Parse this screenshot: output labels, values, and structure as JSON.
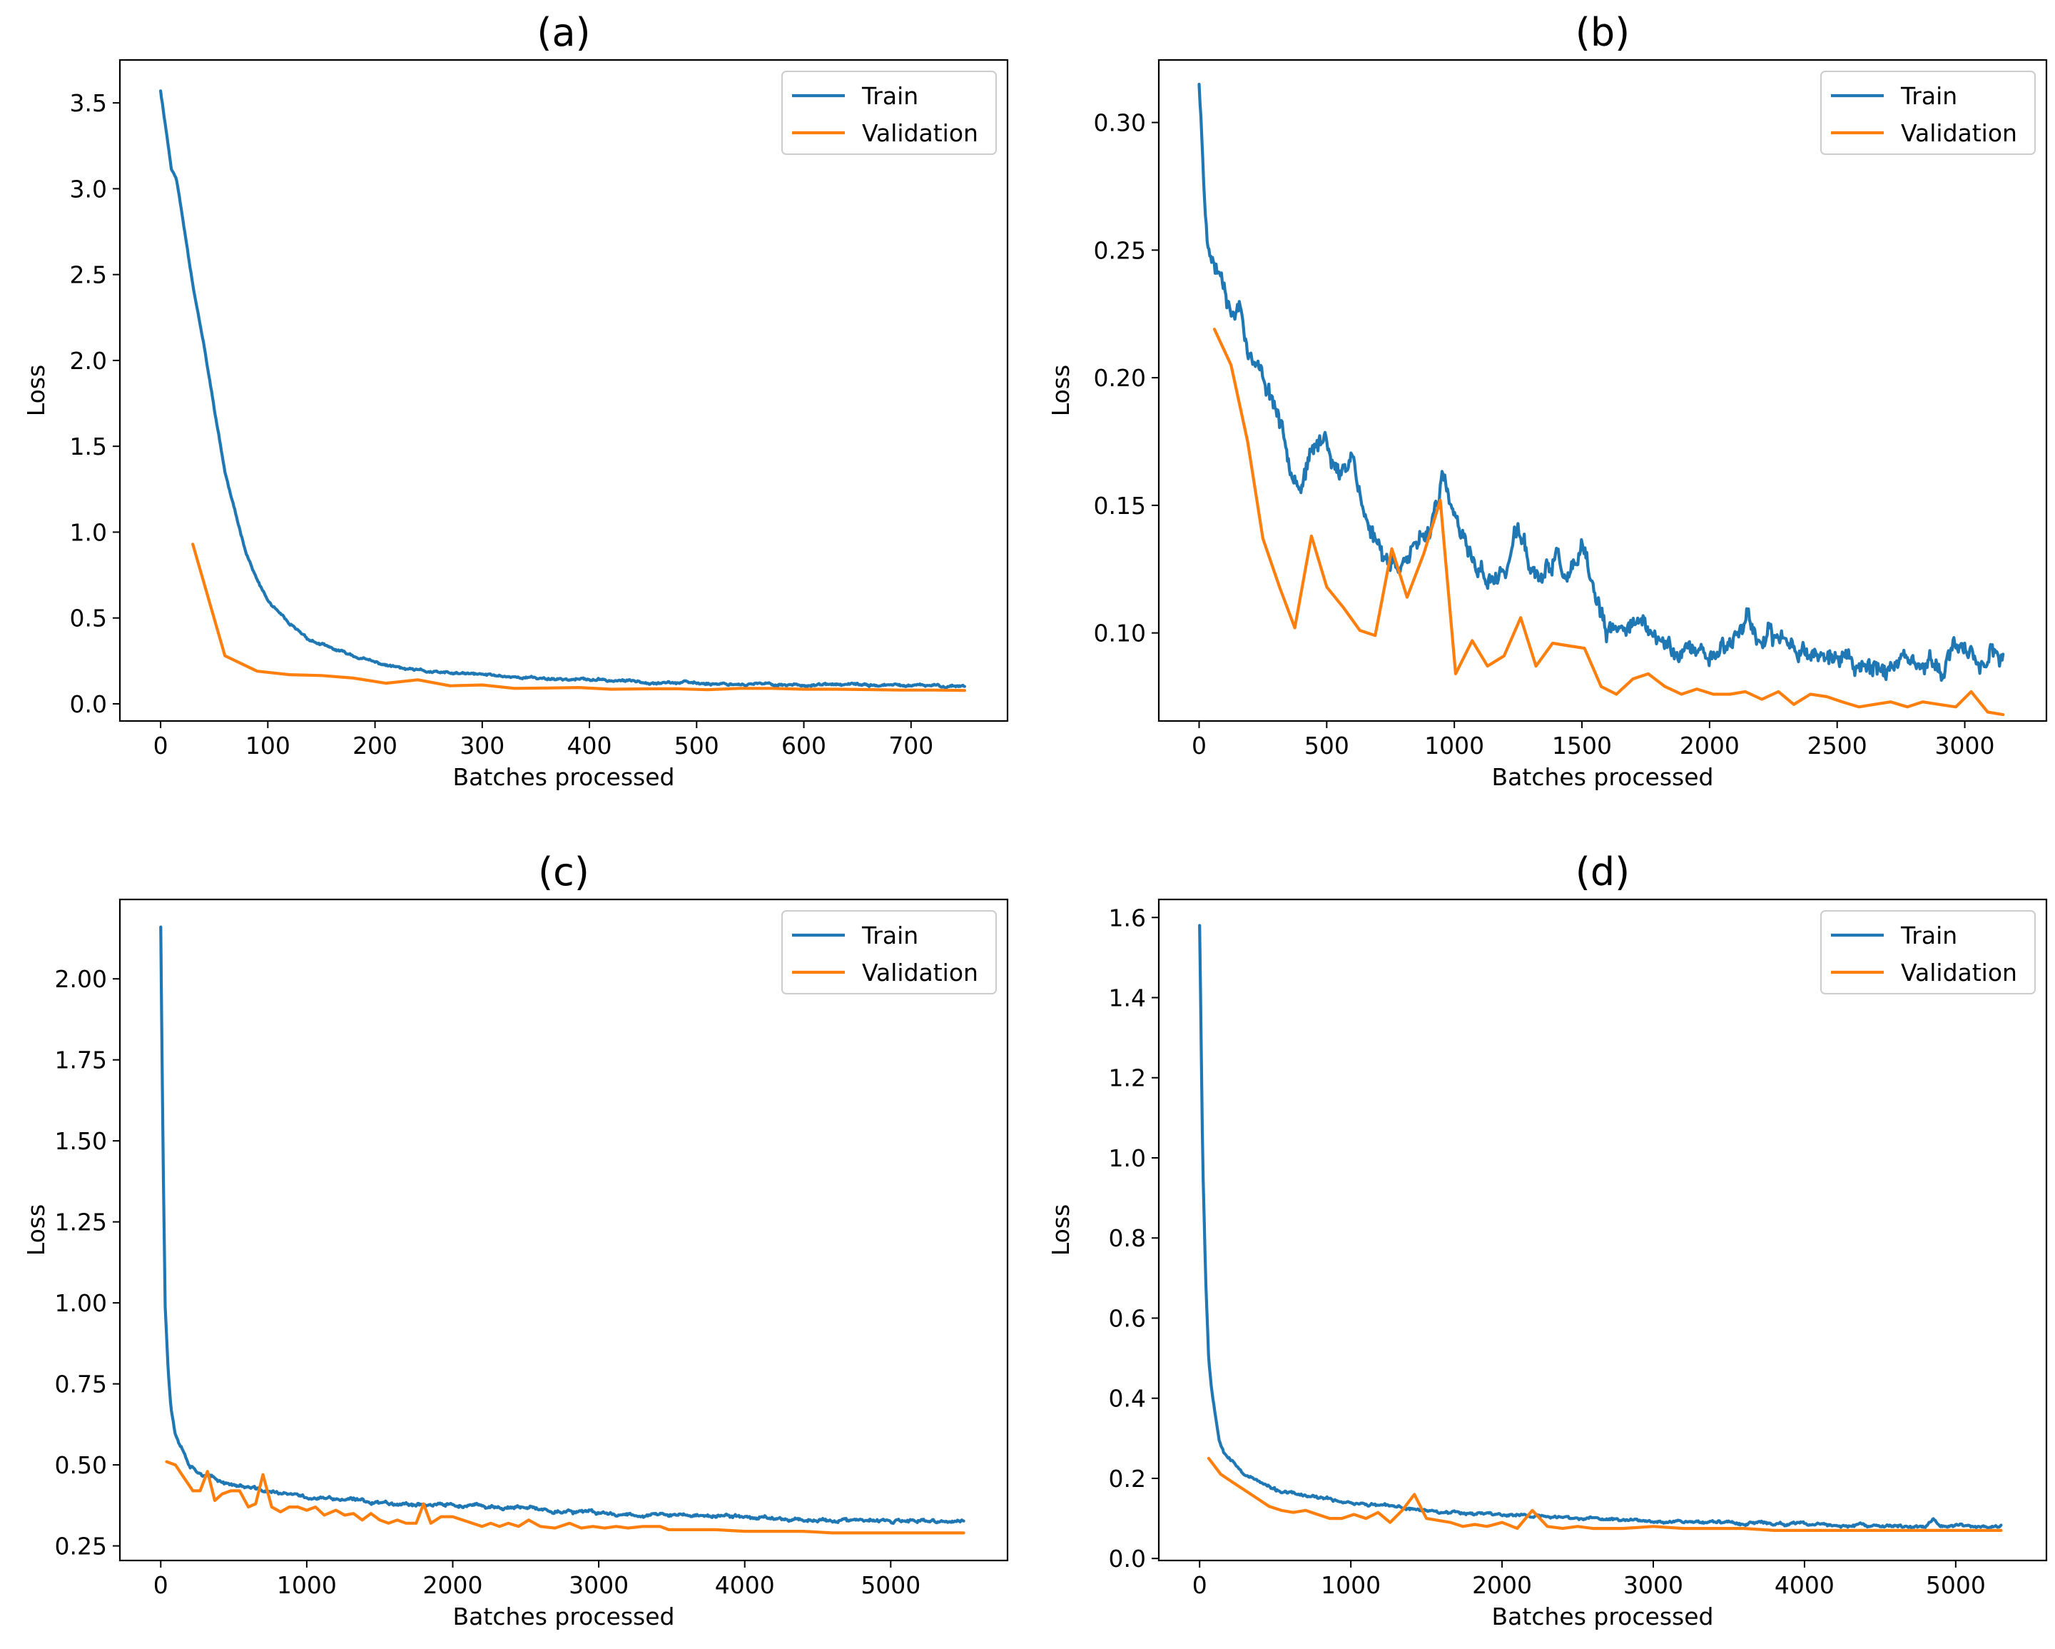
{
  "colors": {
    "train": "#1f77b4",
    "validation": "#ff7f0e"
  },
  "legend": {
    "train_label": "Train",
    "validation_label": "Validation",
    "placement": "top-right"
  },
  "chart_data": [
    {
      "id": "a",
      "type": "line",
      "title": "(a)",
      "xlabel": "Batches processed",
      "ylabel": "Loss",
      "xlim": [
        -38,
        790
      ],
      "ylim": [
        -0.1,
        3.75
      ],
      "xticks": [
        0,
        100,
        200,
        300,
        400,
        500,
        600,
        700
      ],
      "yticks": [
        0.0,
        0.5,
        1.0,
        1.5,
        2.0,
        2.5,
        3.0,
        3.5
      ],
      "ytick_decimals": 1,
      "series": [
        {
          "name": "Train",
          "noise": 0.008,
          "seed": 11,
          "x": [
            0,
            5,
            10,
            15,
            20,
            30,
            40,
            50,
            60,
            70,
            80,
            90,
            100,
            120,
            140,
            160,
            180,
            200,
            230,
            260,
            300,
            350,
            400,
            450,
            500,
            550,
            600,
            650,
            700,
            750
          ],
          "y": [
            3.57,
            3.35,
            3.12,
            3.05,
            2.85,
            2.45,
            2.1,
            1.72,
            1.35,
            1.1,
            0.88,
            0.72,
            0.6,
            0.46,
            0.37,
            0.32,
            0.28,
            0.24,
            0.2,
            0.18,
            0.17,
            0.15,
            0.14,
            0.13,
            0.12,
            0.115,
            0.11,
            0.11,
            0.105,
            0.105
          ]
        },
        {
          "name": "Validation",
          "noise": 0,
          "seed": 0,
          "x": [
            30,
            60,
            90,
            120,
            150,
            180,
            210,
            240,
            270,
            300,
            330,
            360,
            390,
            420,
            450,
            480,
            510,
            540,
            570,
            600,
            630,
            660,
            690,
            720,
            750
          ],
          "y": [
            0.93,
            0.28,
            0.19,
            0.17,
            0.165,
            0.15,
            0.12,
            0.14,
            0.105,
            0.11,
            0.09,
            0.092,
            0.095,
            0.085,
            0.087,
            0.088,
            0.082,
            0.09,
            0.09,
            0.085,
            0.085,
            0.083,
            0.08,
            0.08,
            0.078
          ]
        }
      ]
    },
    {
      "id": "b",
      "type": "line",
      "title": "(b)",
      "xlabel": "Batches processed",
      "ylabel": "Loss",
      "xlim": [
        -158,
        3320
      ],
      "ylim": [
        0.0655,
        0.3245
      ],
      "xticks": [
        0,
        500,
        1000,
        1500,
        2000,
        2500,
        3000
      ],
      "yticks": [
        0.1,
        0.15,
        0.2,
        0.25,
        0.3
      ],
      "ytick_decimals": 2,
      "series": [
        {
          "name": "Train",
          "noise": 0.0045,
          "seed": 23,
          "x": [
            0,
            20,
            40,
            60,
            100,
            130,
            160,
            200,
            250,
            300,
            350,
            400,
            450,
            500,
            550,
            600,
            650,
            700,
            750,
            800,
            850,
            900,
            950,
            1000,
            1050,
            1100,
            1150,
            1200,
            1250,
            1300,
            1350,
            1400,
            1450,
            1500,
            1550,
            1600,
            1650,
            1700,
            1750,
            1800,
            1900,
            2000,
            2100,
            2150,
            2200,
            2300,
            2400,
            2500,
            2600,
            2700,
            2800,
            2900,
            2950,
            3000,
            3050,
            3100,
            3150
          ],
          "y": [
            0.315,
            0.275,
            0.25,
            0.245,
            0.24,
            0.225,
            0.23,
            0.21,
            0.2,
            0.19,
            0.17,
            0.16,
            0.17,
            0.178,
            0.16,
            0.172,
            0.145,
            0.135,
            0.128,
            0.13,
            0.13,
            0.14,
            0.16,
            0.145,
            0.13,
            0.125,
            0.12,
            0.125,
            0.14,
            0.125,
            0.12,
            0.13,
            0.12,
            0.13,
            0.115,
            0.098,
            0.1,
            0.108,
            0.1,
            0.097,
            0.093,
            0.092,
            0.098,
            0.108,
            0.095,
            0.098,
            0.093,
            0.09,
            0.088,
            0.087,
            0.085,
            0.088,
            0.09,
            0.097,
            0.087,
            0.094,
            0.085
          ]
        },
        {
          "name": "Validation",
          "noise": 0,
          "seed": 0,
          "x": [
            60,
            125,
            190,
            250,
            315,
            375,
            440,
            500,
            565,
            630,
            690,
            755,
            815,
            880,
            945,
            1005,
            1070,
            1130,
            1195,
            1260,
            1320,
            1385,
            1445,
            1510,
            1575,
            1635,
            1700,
            1760,
            1825,
            1890,
            1950,
            2015,
            2080,
            2140,
            2205,
            2270,
            2330,
            2395,
            2460,
            2520,
            2585,
            2645,
            2710,
            2775,
            2835,
            2900,
            2965,
            3025,
            3090,
            3150
          ],
          "y": [
            0.219,
            0.205,
            0.175,
            0.137,
            0.118,
            0.102,
            0.138,
            0.118,
            0.11,
            0.101,
            0.099,
            0.133,
            0.114,
            0.131,
            0.152,
            0.084,
            0.097,
            0.087,
            0.091,
            0.106,
            0.087,
            0.096,
            0.095,
            0.094,
            0.079,
            0.076,
            0.082,
            0.084,
            0.079,
            0.076,
            0.078,
            0.076,
            0.076,
            0.077,
            0.074,
            0.077,
            0.072,
            0.076,
            0.075,
            0.073,
            0.071,
            0.072,
            0.073,
            0.071,
            0.073,
            0.072,
            0.071,
            0.077,
            0.069,
            0.068
          ]
        }
      ]
    },
    {
      "id": "c",
      "type": "line",
      "title": "(c)",
      "xlabel": "Batches processed",
      "ylabel": "Loss",
      "xlim": [
        -280,
        5800
      ],
      "ylim": [
        0.205,
        2.245
      ],
      "xticks": [
        0,
        1000,
        2000,
        3000,
        4000,
        5000
      ],
      "yticks": [
        0.25,
        0.5,
        0.75,
        1.0,
        1.25,
        1.5,
        1.75,
        2.0
      ],
      "ytick_decimals": 2,
      "series": [
        {
          "name": "Train",
          "noise": 0.006,
          "seed": 37,
          "x": [
            0,
            15,
            30,
            50,
            70,
            100,
            150,
            200,
            300,
            400,
            500,
            700,
            1000,
            1500,
            2000,
            2500,
            3000,
            3500,
            4000,
            4500,
            5000,
            5500
          ],
          "y": [
            2.16,
            1.5,
            1.0,
            0.8,
            0.68,
            0.6,
            0.55,
            0.5,
            0.47,
            0.45,
            0.44,
            0.42,
            0.4,
            0.385,
            0.375,
            0.365,
            0.35,
            0.345,
            0.34,
            0.33,
            0.325,
            0.325
          ]
        },
        {
          "name": "Validation",
          "noise": 0,
          "seed": 0,
          "x": [
            40,
            100,
            160,
            220,
            270,
            320,
            370,
            420,
            480,
            540,
            600,
            650,
            700,
            760,
            820,
            880,
            940,
            1000,
            1060,
            1120,
            1200,
            1260,
            1320,
            1380,
            1440,
            1500,
            1560,
            1620,
            1680,
            1750,
            1800,
            1850,
            1920,
            2000,
            2100,
            2200,
            2260,
            2320,
            2380,
            2450,
            2520,
            2600,
            2700,
            2800,
            2880,
            2960,
            3040,
            3120,
            3200,
            3300,
            3420,
            3480,
            3600,
            3800,
            4000,
            4200,
            4400,
            4600,
            4800,
            5000,
            5200,
            5500
          ],
          "y": [
            0.51,
            0.5,
            0.46,
            0.42,
            0.42,
            0.48,
            0.39,
            0.41,
            0.42,
            0.42,
            0.37,
            0.38,
            0.47,
            0.37,
            0.355,
            0.37,
            0.37,
            0.36,
            0.37,
            0.345,
            0.36,
            0.345,
            0.35,
            0.33,
            0.35,
            0.33,
            0.32,
            0.33,
            0.32,
            0.32,
            0.38,
            0.32,
            0.34,
            0.34,
            0.325,
            0.31,
            0.32,
            0.31,
            0.32,
            0.31,
            0.33,
            0.31,
            0.305,
            0.32,
            0.305,
            0.31,
            0.305,
            0.31,
            0.305,
            0.31,
            0.31,
            0.3,
            0.3,
            0.3,
            0.295,
            0.295,
            0.295,
            0.29,
            0.29,
            0.29,
            0.29,
            0.29
          ]
        }
      ]
    },
    {
      "id": "d",
      "type": "line",
      "title": "(d)",
      "xlabel": "Batches processed",
      "ylabel": "Loss",
      "xlim": [
        -270,
        5600
      ],
      "ylim": [
        -0.005,
        1.645
      ],
      "xticks": [
        0,
        1000,
        2000,
        3000,
        4000,
        5000
      ],
      "yticks": [
        0.0,
        0.2,
        0.4,
        0.6,
        0.8,
        1.0,
        1.2,
        1.4,
        1.6
      ],
      "ytick_decimals": 1,
      "series": [
        {
          "name": "Train",
          "noise": 0.004,
          "seed": 53,
          "x": [
            0,
            10,
            20,
            40,
            60,
            80,
            100,
            130,
            160,
            200,
            250,
            300,
            400,
            500,
            700,
            1000,
            1500,
            2000,
            2500,
            3000,
            3500,
            4000,
            4500,
            4800,
            4850,
            4900,
            5000,
            5300
          ],
          "y": [
            1.58,
            1.3,
            1.0,
            0.7,
            0.5,
            0.42,
            0.37,
            0.3,
            0.27,
            0.25,
            0.23,
            0.21,
            0.19,
            0.17,
            0.155,
            0.14,
            0.12,
            0.11,
            0.1,
            0.095,
            0.09,
            0.085,
            0.08,
            0.08,
            0.1,
            0.08,
            0.08,
            0.08
          ]
        },
        {
          "name": "Validation",
          "noise": 0,
          "seed": 0,
          "x": [
            60,
            140,
            220,
            300,
            380,
            460,
            540,
            620,
            700,
            780,
            860,
            940,
            1020,
            1100,
            1180,
            1260,
            1340,
            1420,
            1500,
            1580,
            1660,
            1740,
            1820,
            1900,
            2000,
            2100,
            2200,
            2300,
            2400,
            2500,
            2600,
            2800,
            3000,
            3200,
            3400,
            3600,
            3800,
            4000,
            4200,
            4400,
            4600,
            4800,
            5000,
            5300
          ],
          "y": [
            0.25,
            0.21,
            0.19,
            0.17,
            0.15,
            0.13,
            0.12,
            0.115,
            0.12,
            0.11,
            0.1,
            0.1,
            0.11,
            0.1,
            0.115,
            0.09,
            0.12,
            0.16,
            0.1,
            0.095,
            0.09,
            0.08,
            0.085,
            0.08,
            0.09,
            0.075,
            0.12,
            0.08,
            0.075,
            0.08,
            0.075,
            0.075,
            0.08,
            0.075,
            0.075,
            0.075,
            0.07,
            0.07,
            0.07,
            0.07,
            0.07,
            0.07,
            0.07,
            0.07
          ]
        }
      ]
    }
  ]
}
